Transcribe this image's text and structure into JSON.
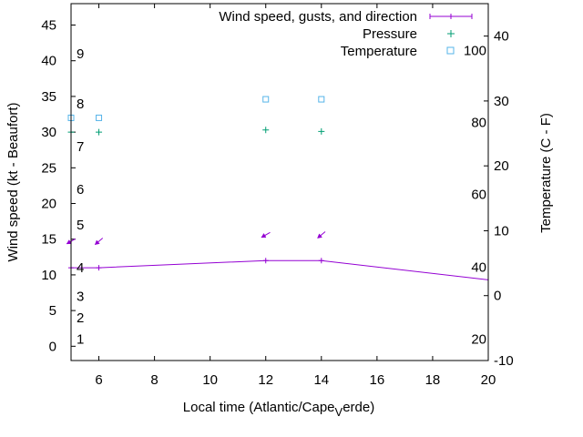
{
  "chart_data": {
    "type": "line",
    "xlabel": "Local time (Atlantic/Cape_Verde)",
    "xlabel_main": "Local time (Atlantic/Cape",
    "xlabel_sub": "V",
    "xlabel_tail": "erde)",
    "ylabel": "Wind speed (kt - Beaufort)",
    "y2label": "Temperature (C - F)",
    "xlim": [
      5,
      20
    ],
    "ylim": [
      -2,
      48
    ],
    "y2lim": [
      -10,
      45
    ],
    "x_ticks": [
      "6",
      "8",
      "10",
      "12",
      "14",
      "16",
      "18",
      "20"
    ],
    "y_ticks": [
      "0",
      "5",
      "10",
      "15",
      "20",
      "25",
      "30",
      "35",
      "40",
      "45"
    ],
    "y2_ticks": [
      "-10",
      "0",
      "10",
      "20",
      "30",
      "40"
    ],
    "beaufort_labels": [
      {
        "label": "1",
        "y": 1
      },
      {
        "label": "2",
        "y": 4
      },
      {
        "label": "3",
        "y": 7
      },
      {
        "label": "4",
        "y": 11
      },
      {
        "label": "5",
        "y": 17
      },
      {
        "label": "6",
        "y": 22
      },
      {
        "label": "7",
        "y": 28
      },
      {
        "label": "8",
        "y": 34
      },
      {
        "label": "9",
        "y": 41
      }
    ],
    "fahrenheit_labels": [
      {
        "label": "20",
        "c": -6.7
      },
      {
        "label": "40",
        "c": 4.4
      },
      {
        "label": "60",
        "c": 15.6
      },
      {
        "label": "80",
        "c": 26.7
      },
      {
        "label": "100",
        "c": 37.8
      }
    ],
    "legend": {
      "position": "top-right",
      "entries": [
        "Wind speed, gusts, and direction",
        "Pressure",
        "Temperature"
      ]
    },
    "series": [
      {
        "name": "Wind speed, gusts, and direction",
        "color": "#9400d3",
        "x": [
          5,
          6,
          12,
          14,
          20
        ],
        "y": [
          11,
          11,
          12,
          12,
          9.3
        ]
      },
      {
        "name": "Pressure",
        "color": "#009e73",
        "x": [
          5,
          6,
          12,
          14
        ],
        "y": [
          30,
          30,
          30.3,
          30.1
        ]
      },
      {
        "name": "Temperature",
        "color": "#56b4e9",
        "x": [
          5,
          6,
          12,
          14
        ],
        "y": [
          32,
          32,
          34.6,
          34.6
        ]
      }
    ],
    "wind_arrows": {
      "color": "#9400d3",
      "x": [
        5,
        6,
        12,
        14
      ],
      "y": [
        14.7,
        14.7,
        15.6,
        15.6
      ],
      "direction_deg": [
        60,
        50,
        60,
        50
      ]
    }
  }
}
